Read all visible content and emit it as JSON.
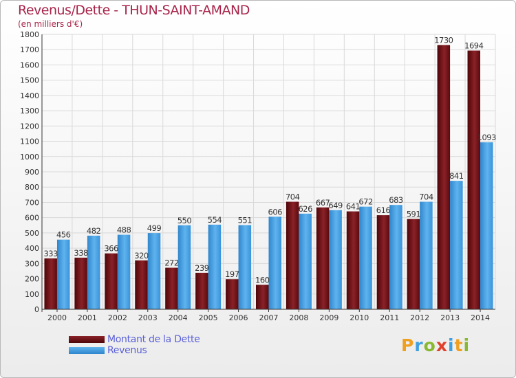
{
  "title": "Revenus/Dette - THUN-SAINT-AMAND",
  "subtitle": "(en milliers d'€)",
  "logo": {
    "text": "Proxiti",
    "letter_colors": [
      "#f0a020",
      "#3fa0e0",
      "#88b830",
      "#e0402a",
      "#3fa0e0",
      "#f0a020",
      "#88b830"
    ]
  },
  "colors": {
    "debt": "#6d0f14",
    "revenue": "#3d9be0",
    "axis": "#333333",
    "grid": "#d9d9d9",
    "background_top": "#ffffff",
    "background_bottom": "#ececec"
  },
  "chart_data": {
    "type": "bar",
    "categories": [
      "2000",
      "2001",
      "2002",
      "2003",
      "2004",
      "2005",
      "2006",
      "2007",
      "2008",
      "2009",
      "2010",
      "2011",
      "2012",
      "2013",
      "2014"
    ],
    "series": [
      {
        "name": "Montant de la Dette",
        "values": [
          333,
          338,
          366,
          320,
          272,
          239,
          197,
          160,
          704,
          667,
          641,
          616,
          591,
          1730,
          1694
        ]
      },
      {
        "name": "Revenus",
        "values": [
          456,
          482,
          488,
          499,
          550,
          554,
          551,
          606,
          626,
          649,
          672,
          683,
          704,
          841,
          1093
        ]
      }
    ],
    "value_labels": [
      [
        "333",
        "338",
        "366",
        "320",
        "272",
        "239",
        "197",
        "160",
        "704",
        "667",
        "641",
        "616",
        "591",
        "1730",
        "1694"
      ],
      [
        "456",
        "482",
        "488",
        "499",
        "550",
        "554",
        "551",
        "606",
        "626",
        "649",
        "672",
        "683",
        "704",
        "841",
        "1093"
      ]
    ],
    "ylim": [
      0,
      1800
    ],
    "yticks": [
      0,
      100,
      200,
      300,
      400,
      500,
      600,
      700,
      800,
      900,
      1000,
      1100,
      1200,
      1300,
      1400,
      1500,
      1600,
      1700,
      1800
    ],
    "grid": true,
    "legend_position": "bottom-left"
  }
}
